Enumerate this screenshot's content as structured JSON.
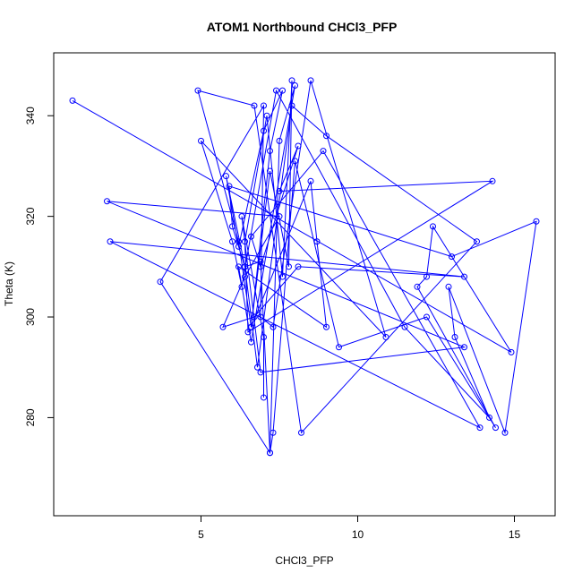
{
  "chart_data": {
    "type": "line",
    "title": "ATOM1 Northbound CHCl3_PFP",
    "xlabel": "CHCl3_PFP",
    "ylabel": "Theta (K)",
    "xlim": [
      0.3,
      16.3
    ],
    "ylim": [
      260.5,
      352.5
    ],
    "xticks": [
      5,
      10,
      15
    ],
    "yticks": [
      280,
      300,
      320,
      340
    ],
    "grid": false,
    "legend": "none",
    "line_color": "#0000ff",
    "marker": "open-circle",
    "series": [
      {
        "x": [
          0.9,
          14.9,
          12.4,
          12.2,
          11.9,
          14.4,
          12.2,
          9.4,
          8.0,
          7.3,
          7.2,
          6.9,
          6.4,
          5.8,
          6.2,
          7.0,
          7.6,
          7.2,
          6.6,
          6.2,
          4.9,
          6.7,
          8.2,
          13.8,
          9.0,
          7.9,
          6.8,
          6.4,
          6.0,
          5.9,
          13.0,
          15.7,
          14.7,
          12.9,
          13.1,
          14.2,
          11.5,
          7.4,
          6.3,
          6.0,
          5.0,
          10.9,
          8.5,
          7.3,
          6.9,
          7.0,
          3.7,
          7.2,
          7.5,
          8.0,
          6.6,
          6.2,
          9.0,
          8.7,
          8.5,
          6.6,
          7.2,
          7.8,
          7.9,
          7.6,
          7.1,
          6.4,
          6.5,
          14.3,
          7.5,
          8.1,
          6.9,
          6.6,
          8.9,
          13.9,
          2.1,
          13.4,
          8.1,
          6.7,
          5.7,
          6.4,
          7.5,
          2.0,
          13.4,
          6.9,
          6.3,
          7.0,
          7.0
        ],
        "y": [
          343,
          293,
          318,
          308,
          306,
          278,
          300,
          294,
          331,
          277,
          273,
          311,
          310,
          328,
          314,
          337,
          345,
          333,
          298,
          315,
          345,
          342,
          277,
          315,
          336,
          342,
          290,
          310,
          318,
          326,
          312,
          319,
          277,
          306,
          296,
          280,
          298,
          345,
          306,
          315,
          335,
          296,
          347,
          298,
          300,
          342,
          307,
          273,
          335,
          346,
          295,
          310,
          298,
          315,
          327,
          298,
          329,
          310,
          347,
          308,
          340,
          315,
          297,
          327,
          325,
          334,
          310,
          316,
          333,
          278,
          315,
          308,
          310,
          300,
          298,
          308,
          320,
          323,
          294,
          289,
          320,
          296,
          284
        ]
      }
    ]
  }
}
